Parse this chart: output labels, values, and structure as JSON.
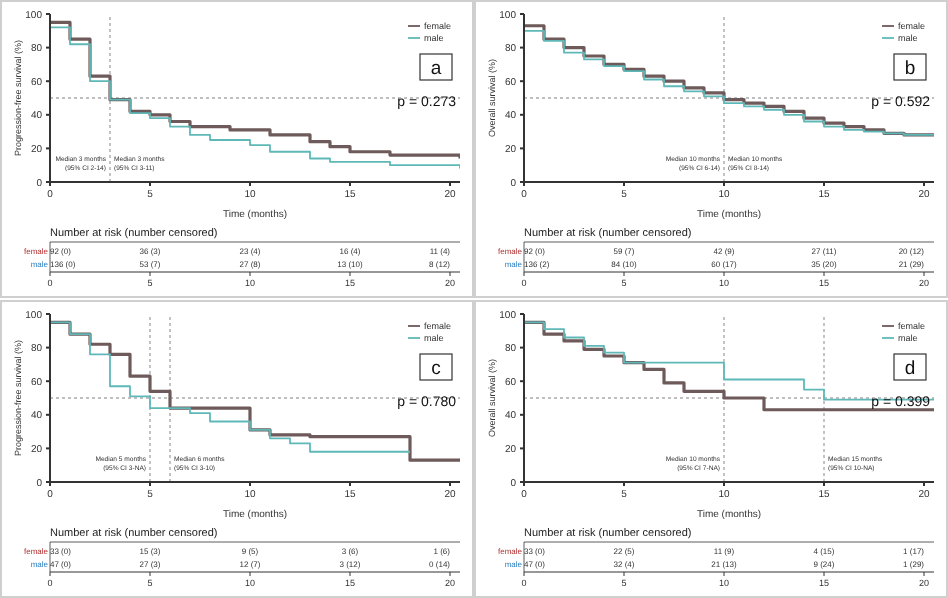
{
  "chart_data": [
    {
      "type": "step",
      "ylabel": "Progression-free survival (%)",
      "xlabel": "Time (months)",
      "xlim": [
        0,
        20.5
      ],
      "xticks": [
        0,
        5,
        10,
        15,
        20
      ],
      "ylim": [
        0,
        100
      ],
      "yticks": [
        0,
        20,
        40,
        60,
        80,
        100
      ],
      "legend": "top right",
      "line_style": "solid",
      "series": [
        {
          "name": "female",
          "color": "#6e5a5a",
          "x": [
            0,
            1,
            2,
            3,
            4,
            5,
            6,
            7,
            9,
            11,
            13,
            14,
            15,
            17,
            20.5
          ],
          "values": [
            95,
            85,
            63,
            49,
            42,
            40,
            36,
            33,
            31,
            28,
            24,
            21,
            18,
            16,
            14
          ]
        },
        {
          "name": "male",
          "color": "#5fb8b8",
          "x": [
            0,
            1,
            2,
            3,
            4,
            5,
            6,
            7,
            8,
            10,
            11,
            13,
            14,
            17,
            20.5
          ],
          "values": [
            92,
            82,
            60,
            49,
            41,
            38,
            33,
            28,
            25,
            22,
            18,
            14,
            12,
            10,
            8
          ]
        }
      ],
      "ref_lines": [
        {
          "axis": "y",
          "value": 50,
          "color": "#aaaaaa",
          "line_style": "dotted"
        },
        {
          "axis": "x",
          "value": 3,
          "color": "#aaaaaa",
          "line_style": "dotted"
        }
      ],
      "annotations": [
        "a",
        "p = 0.273",
        {
          "text": "Median 3 months\n(95% CI 2-14)",
          "x": 3,
          "y": 8
        },
        {
          "text": "Median 3 months\n(95% CI 3-11)",
          "x": 3,
          "y": 8
        },
        "Number at risk (number censored)",
        "female",
        "male",
        "92 (0)",
        "36 (3)",
        "23 (4)",
        "16 (4)",
        "11 (4)",
        "136 (0)",
        "53 (7)",
        "27 (8)",
        "13 (10)",
        "8 (12)",
        "0",
        "5",
        "10",
        "15",
        "20"
      ]
    },
    {
      "type": "step",
      "ylabel": "Overall survival (%)",
      "xlabel": "Time (months)",
      "xlim": [
        0,
        20.5
      ],
      "xticks": [
        0,
        5,
        10,
        15,
        20
      ],
      "ylim": [
        0,
        100
      ],
      "yticks": [
        0,
        20,
        40,
        60,
        80,
        100
      ],
      "legend": "top right",
      "line_style": "solid",
      "series": [
        {
          "name": "female",
          "color": "#6e5a5a",
          "x": [
            0,
            1,
            2,
            3,
            4,
            5,
            6,
            7,
            8,
            9,
            10,
            11,
            12,
            13,
            14,
            15,
            16,
            17,
            18,
            19,
            20.5
          ],
          "values": [
            93,
            85,
            80,
            75,
            70,
            67,
            63,
            60,
            56,
            53,
            49,
            47,
            45,
            42,
            38,
            35,
            33,
            31,
            29,
            28,
            28
          ]
        },
        {
          "name": "male",
          "color": "#5fb8b8",
          "x": [
            0,
            1,
            2,
            3,
            4,
            5,
            6,
            7,
            8,
            9,
            10,
            11,
            12,
            13,
            14,
            15,
            16,
            17,
            18,
            19,
            20.5
          ],
          "values": [
            90,
            84,
            77,
            73,
            69,
            66,
            61,
            57,
            54,
            51,
            47,
            45,
            43,
            40,
            36,
            33,
            31,
            30,
            29,
            28,
            28
          ]
        }
      ],
      "ref_lines": [
        {
          "axis": "y",
          "value": 50,
          "color": "#aaaaaa",
          "line_style": "dotted"
        },
        {
          "axis": "x",
          "value": 10,
          "color": "#aaaaaa",
          "line_style": "dotted"
        }
      ],
      "annotations": [
        "b",
        "p = 0.592",
        {
          "text": "Median 10 months\n(95% CI 6-14)",
          "x": 10,
          "y": 8
        },
        {
          "text": "Median 10 months\n(95% CI 8-14)",
          "x": 10,
          "y": 8
        },
        "Number at risk (number censored)",
        "female",
        "male",
        "92 (0)",
        "59 (7)",
        "42 (9)",
        "27 (11)",
        "20 (12)",
        "136 (2)",
        "84 (10)",
        "60 (17)",
        "35 (20)",
        "21 (29)",
        "0",
        "5",
        "10",
        "15",
        "20"
      ]
    },
    {
      "type": "step",
      "ylabel": "Progression-free survival (%)",
      "xlabel": "Time (months)",
      "xlim": [
        0,
        20.5
      ],
      "xticks": [
        0,
        5,
        10,
        15,
        20
      ],
      "ylim": [
        0,
        100
      ],
      "yticks": [
        0,
        20,
        40,
        60,
        80,
        100
      ],
      "legend": "top right",
      "line_style": "solid",
      "series": [
        {
          "name": "female",
          "color": "#6e5a5a",
          "x": [
            0,
            1,
            2,
            3,
            4,
            5,
            6,
            8,
            10,
            11,
            12,
            13,
            18,
            20.5
          ],
          "values": [
            95,
            88,
            82,
            76,
            63,
            54,
            44,
            44,
            31,
            28,
            28,
            27,
            13,
            13
          ]
        },
        {
          "name": "male",
          "color": "#5fb8b8",
          "x": [
            0,
            1,
            2,
            3,
            4,
            5,
            6,
            7,
            8,
            10,
            11,
            12,
            13,
            18
          ],
          "values": [
            95,
            88,
            76,
            57,
            51,
            44,
            44,
            41,
            36,
            31,
            26,
            23,
            18,
            18
          ]
        }
      ],
      "ref_lines": [
        {
          "axis": "y",
          "value": 50,
          "color": "#aaaaaa",
          "line_style": "dotted"
        },
        {
          "axis": "x",
          "value": 5,
          "color": "#aaaaaa",
          "line_style": "dotted"
        },
        {
          "axis": "x",
          "value": 6,
          "color": "#aaaaaa",
          "line_style": "dotted"
        }
      ],
      "annotations": [
        "c",
        "p = 0.780",
        {
          "text": "Median 5 months\n(95% CI 3-NA)",
          "x": 5,
          "y": 8
        },
        {
          "text": "Median 6 months\n(95% CI 3-10)",
          "x": 6,
          "y": 8
        },
        "Number at risk (number censored)",
        "female",
        "male",
        "33 (0)",
        "15 (3)",
        "9 (5)",
        "3 (6)",
        "1 (6)",
        "47 (0)",
        "27 (3)",
        "12 (7)",
        "3 (12)",
        "0 (14)",
        "0",
        "5",
        "10",
        "15",
        "20"
      ]
    },
    {
      "type": "step",
      "ylabel": "Overall survival (%)",
      "xlabel": "Time (months)",
      "xlim": [
        0,
        20.5
      ],
      "xticks": [
        0,
        5,
        10,
        15,
        20
      ],
      "ylim": [
        0,
        100
      ],
      "yticks": [
        0,
        20,
        40,
        60,
        80,
        100
      ],
      "legend": "top right",
      "line_style": "solid",
      "series": [
        {
          "name": "female",
          "color": "#6e5a5a",
          "x": [
            0,
            1,
            2,
            3,
            4,
            5,
            6,
            7,
            8,
            10,
            12,
            15,
            20.5
          ],
          "values": [
            95,
            88,
            84,
            79,
            75,
            71,
            67,
            59,
            54,
            50,
            43,
            43,
            43
          ]
        },
        {
          "name": "male",
          "color": "#5fb8b8",
          "x": [
            0,
            1,
            2,
            3,
            4,
            5,
            6,
            7,
            10,
            14,
            15,
            20.5
          ],
          "values": [
            95,
            91,
            86,
            81,
            77,
            71,
            71,
            71,
            61,
            55,
            49,
            49
          ]
        }
      ],
      "ref_lines": [
        {
          "axis": "y",
          "value": 50,
          "color": "#aaaaaa",
          "line_style": "dotted"
        },
        {
          "axis": "x",
          "value": 10,
          "color": "#aaaaaa",
          "line_style": "dotted"
        },
        {
          "axis": "x",
          "value": 15,
          "color": "#aaaaaa",
          "line_style": "dotted"
        }
      ],
      "annotations": [
        "d",
        "p = 0.399",
        {
          "text": "Median 10 months\n(95% CI 7-NA)",
          "x": 10,
          "y": 8
        },
        {
          "text": "Median 15 months\n(95% CI 10-NA)",
          "x": 15,
          "y": 8
        },
        "Number at risk (number censored)",
        "female",
        "male",
        "33 (0)",
        "22 (5)",
        "11 (9)",
        "4 (15)",
        "1 (17)",
        "47 (0)",
        "32 (4)",
        "21 (13)",
        "9 (24)",
        "1 (29)",
        "0",
        "5",
        "10",
        "15",
        "20"
      ]
    }
  ]
}
